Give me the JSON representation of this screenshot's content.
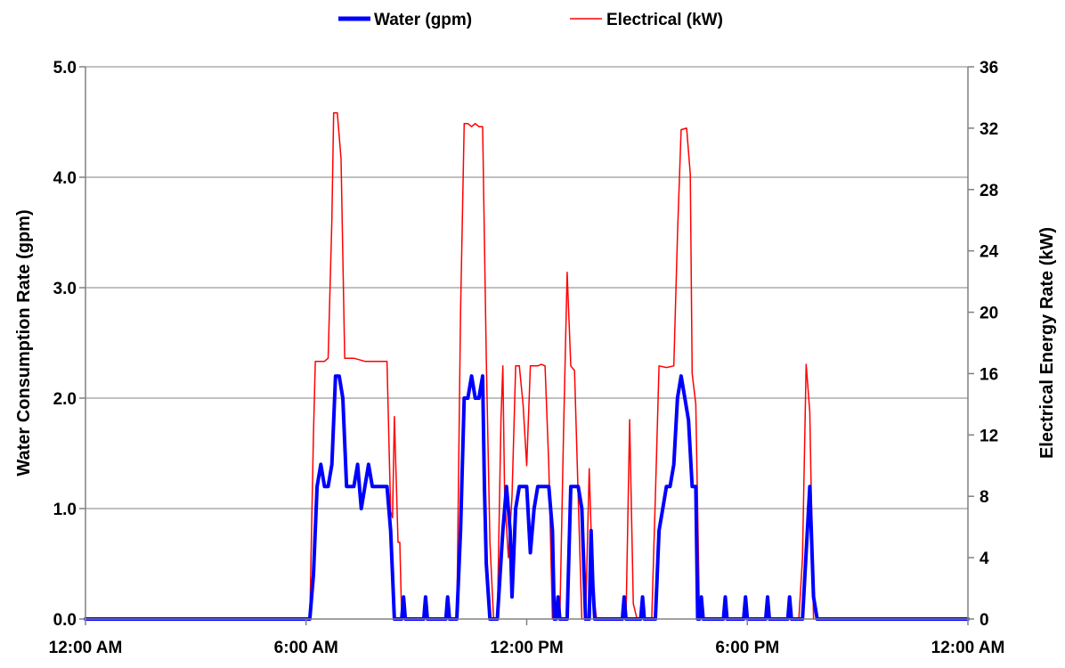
{
  "chart_data": {
    "type": "line",
    "legend": {
      "placement": "top-center"
    },
    "grid": {
      "y_major": true
    },
    "x_axis": {
      "range_hours": [
        0,
        24
      ],
      "ticks": [
        {
          "hour": 0,
          "label": "12:00 AM"
        },
        {
          "hour": 6,
          "label": "6:00 AM"
        },
        {
          "hour": 12,
          "label": "12:00 PM"
        },
        {
          "hour": 18,
          "label": "6:00 PM"
        },
        {
          "hour": 24,
          "label": "12:00 AM"
        }
      ]
    },
    "y_left": {
      "label": "Water Consumption Rate (gpm)",
      "range": [
        0,
        5
      ],
      "ticks": [
        {
          "value": 0,
          "label": "0.0"
        },
        {
          "value": 1,
          "label": "1.0"
        },
        {
          "value": 2,
          "label": "2.0"
        },
        {
          "value": 3,
          "label": "3.0"
        },
        {
          "value": 4,
          "label": "4.0"
        },
        {
          "value": 5,
          "label": "5.0"
        }
      ]
    },
    "y_right": {
      "label": "Electrical Energy Rate (kW)",
      "range": [
        0,
        36
      ],
      "ticks": [
        {
          "value": 0,
          "label": "0"
        },
        {
          "value": 4,
          "label": "4"
        },
        {
          "value": 8,
          "label": "8"
        },
        {
          "value": 12,
          "label": "12"
        },
        {
          "value": 16,
          "label": "16"
        },
        {
          "value": 20,
          "label": "20"
        },
        {
          "value": 24,
          "label": "24"
        },
        {
          "value": 28,
          "label": "28"
        },
        {
          "value": 32,
          "label": "32"
        },
        {
          "value": 36,
          "label": "36"
        }
      ]
    },
    "series": [
      {
        "name": "Water (gpm)",
        "axis": "left",
        "color": "#0000ff",
        "points": [
          [
            0,
            0
          ],
          [
            6.1,
            0
          ],
          [
            6.2,
            0.4
          ],
          [
            6.3,
            1.2
          ],
          [
            6.4,
            1.4
          ],
          [
            6.5,
            1.2
          ],
          [
            6.6,
            1.2
          ],
          [
            6.7,
            1.4
          ],
          [
            6.8,
            2.2
          ],
          [
            6.9,
            2.2
          ],
          [
            7.0,
            2.0
          ],
          [
            7.1,
            1.2
          ],
          [
            7.3,
            1.2
          ],
          [
            7.4,
            1.4
          ],
          [
            7.5,
            1.0
          ],
          [
            7.6,
            1.2
          ],
          [
            7.7,
            1.4
          ],
          [
            7.8,
            1.2
          ],
          [
            8.2,
            1.2
          ],
          [
            8.3,
            0.8
          ],
          [
            8.4,
            0
          ],
          [
            8.5,
            0
          ],
          [
            8.6,
            0
          ],
          [
            8.65,
            0.2
          ],
          [
            8.7,
            0
          ],
          [
            9.2,
            0
          ],
          [
            9.25,
            0.2
          ],
          [
            9.3,
            0
          ],
          [
            9.8,
            0
          ],
          [
            9.85,
            0.2
          ],
          [
            9.9,
            0
          ],
          [
            10.1,
            0
          ],
          [
            10.2,
            0.8
          ],
          [
            10.3,
            2.0
          ],
          [
            10.4,
            2.0
          ],
          [
            10.5,
            2.2
          ],
          [
            10.6,
            2.0
          ],
          [
            10.7,
            2.0
          ],
          [
            10.8,
            2.2
          ],
          [
            10.85,
            1.2
          ],
          [
            10.9,
            0.5
          ],
          [
            11.0,
            0
          ],
          [
            11.2,
            0
          ],
          [
            11.35,
            0.8
          ],
          [
            11.45,
            1.2
          ],
          [
            11.55,
            0.8
          ],
          [
            11.6,
            0.2
          ],
          [
            11.7,
            1.0
          ],
          [
            11.8,
            1.2
          ],
          [
            12.0,
            1.2
          ],
          [
            12.1,
            0.6
          ],
          [
            12.2,
            1.0
          ],
          [
            12.3,
            1.2
          ],
          [
            12.6,
            1.2
          ],
          [
            12.7,
            0.8
          ],
          [
            12.75,
            0
          ],
          [
            12.8,
            0
          ],
          [
            12.85,
            0.2
          ],
          [
            12.9,
            0
          ],
          [
            13.1,
            0
          ],
          [
            13.2,
            1.2
          ],
          [
            13.4,
            1.2
          ],
          [
            13.5,
            1.0
          ],
          [
            13.6,
            0
          ],
          [
            13.7,
            0
          ],
          [
            13.75,
            0.8
          ],
          [
            13.8,
            0.3
          ],
          [
            13.85,
            0
          ],
          [
            14.6,
            0
          ],
          [
            14.65,
            0.2
          ],
          [
            14.7,
            0
          ],
          [
            15.1,
            0
          ],
          [
            15.15,
            0.2
          ],
          [
            15.2,
            0
          ],
          [
            15.5,
            0
          ],
          [
            15.6,
            0.8
          ],
          [
            15.7,
            1.0
          ],
          [
            15.8,
            1.2
          ],
          [
            15.9,
            1.2
          ],
          [
            16.0,
            1.4
          ],
          [
            16.1,
            2.0
          ],
          [
            16.2,
            2.2
          ],
          [
            16.3,
            2.0
          ],
          [
            16.4,
            1.8
          ],
          [
            16.5,
            1.2
          ],
          [
            16.6,
            1.2
          ],
          [
            16.65,
            0
          ],
          [
            16.7,
            0
          ],
          [
            16.75,
            0.2
          ],
          [
            16.8,
            0
          ],
          [
            17.35,
            0
          ],
          [
            17.4,
            0.2
          ],
          [
            17.45,
            0
          ],
          [
            17.9,
            0
          ],
          [
            17.95,
            0.2
          ],
          [
            18.0,
            0
          ],
          [
            18.5,
            0
          ],
          [
            18.55,
            0.2
          ],
          [
            18.6,
            0
          ],
          [
            19.1,
            0
          ],
          [
            19.15,
            0.2
          ],
          [
            19.2,
            0
          ],
          [
            19.5,
            0
          ],
          [
            19.6,
            0.6
          ],
          [
            19.7,
            1.2
          ],
          [
            19.8,
            0.2
          ],
          [
            19.9,
            0
          ],
          [
            24,
            0
          ]
        ]
      },
      {
        "name": "Electrical (kW)",
        "axis": "right",
        "color": "#ff0000",
        "points": [
          [
            0,
            0
          ],
          [
            6.1,
            0
          ],
          [
            6.2,
            12
          ],
          [
            6.25,
            16.8
          ],
          [
            6.5,
            16.8
          ],
          [
            6.6,
            17
          ],
          [
            6.7,
            26
          ],
          [
            6.75,
            33
          ],
          [
            6.85,
            33
          ],
          [
            6.95,
            30
          ],
          [
            7.05,
            17
          ],
          [
            7.3,
            17
          ],
          [
            7.6,
            16.8
          ],
          [
            7.8,
            16.8
          ],
          [
            8.2,
            16.8
          ],
          [
            8.3,
            7
          ],
          [
            8.35,
            6.6
          ],
          [
            8.4,
            13.2
          ],
          [
            8.5,
            5
          ],
          [
            8.55,
            5
          ],
          [
            8.6,
            0
          ],
          [
            10.1,
            0
          ],
          [
            10.2,
            20
          ],
          [
            10.3,
            32.3
          ],
          [
            10.4,
            32.3
          ],
          [
            10.5,
            32.1
          ],
          [
            10.6,
            32.3
          ],
          [
            10.7,
            32.1
          ],
          [
            10.8,
            32.1
          ],
          [
            10.9,
            17
          ],
          [
            11.0,
            5
          ],
          [
            11.1,
            0
          ],
          [
            11.2,
            0
          ],
          [
            11.3,
            13
          ],
          [
            11.35,
            16.5
          ],
          [
            11.4,
            8
          ],
          [
            11.5,
            4
          ],
          [
            11.6,
            8
          ],
          [
            11.7,
            16.5
          ],
          [
            11.8,
            16.5
          ],
          [
            11.9,
            14
          ],
          [
            12.0,
            10
          ],
          [
            12.1,
            16.5
          ],
          [
            12.3,
            16.5
          ],
          [
            12.4,
            16.6
          ],
          [
            12.5,
            16.5
          ],
          [
            12.6,
            10
          ],
          [
            12.7,
            0
          ],
          [
            12.9,
            0
          ],
          [
            13.0,
            12
          ],
          [
            13.1,
            22.6
          ],
          [
            13.2,
            16.5
          ],
          [
            13.3,
            16.2
          ],
          [
            13.4,
            8
          ],
          [
            13.5,
            0
          ],
          [
            13.6,
            0
          ],
          [
            13.7,
            9.8
          ],
          [
            13.8,
            2
          ],
          [
            13.9,
            0
          ],
          [
            14.7,
            0
          ],
          [
            14.8,
            13
          ],
          [
            14.9,
            1
          ],
          [
            15.0,
            0
          ],
          [
            15.4,
            0
          ],
          [
            15.5,
            8
          ],
          [
            15.6,
            16.5
          ],
          [
            15.8,
            16.4
          ],
          [
            16.0,
            16.5
          ],
          [
            16.1,
            25
          ],
          [
            16.2,
            31.9
          ],
          [
            16.35,
            32
          ],
          [
            16.45,
            29
          ],
          [
            16.5,
            16
          ],
          [
            16.6,
            14
          ],
          [
            16.7,
            0
          ],
          [
            19.4,
            0
          ],
          [
            19.5,
            4
          ],
          [
            19.6,
            16.6
          ],
          [
            19.7,
            13.5
          ],
          [
            19.8,
            0
          ],
          [
            24,
            0
          ]
        ]
      }
    ]
  }
}
